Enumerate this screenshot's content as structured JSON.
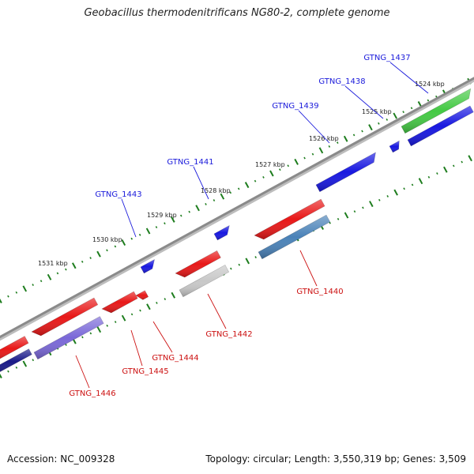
{
  "title": "Geobacillus thermodenitrificans NG80-2, complete genome",
  "footer": {
    "accession": "Accession: NC_009328",
    "summary": "Topology: circular; Length: 3,550,319 bp; Genes: 3,509"
  },
  "colors": {
    "backbone": "#8a8a8a",
    "forward_label": "#1a1adb",
    "reverse_label": "#cc1111",
    "tick": "#1e7d1e"
  },
  "ticks": [
    "1524 kbp",
    "1525 kbp",
    "1526 kbp",
    "1527 kbp",
    "1528 kbp",
    "1529 kbp",
    "1530 kbp",
    "1531 kbp"
  ],
  "genes": [
    {
      "id": "GTNG_1437",
      "strand": "forward",
      "color": "#44c944"
    },
    {
      "id": "GTNG_1438",
      "strand": "forward",
      "color": "#1818e0"
    },
    {
      "id": "GTNG_1439",
      "strand": "forward",
      "color": "#1818e0"
    },
    {
      "id": "GTNG_1440",
      "strand": "reverse",
      "color": "#4a82b8"
    },
    {
      "id": "GTNG_1441",
      "strand": "forward",
      "color": "#1818e0"
    },
    {
      "id": "GTNG_1442",
      "strand": "reverse",
      "color": "#c8c8c8"
    },
    {
      "id": "GTNG_1443",
      "strand": "forward",
      "color": "#1818e0"
    },
    {
      "id": "GTNG_1444",
      "strand": "reverse",
      "color": "#e81818"
    },
    {
      "id": "GTNG_1445",
      "strand": "reverse",
      "color": "#e81818"
    },
    {
      "id": "GTNG_1446",
      "strand": "reverse",
      "color": "#7a68d8"
    }
  ],
  "unlabeled_genes": [
    {
      "name": "outer-green-gene-adjacent",
      "color": "#1818e0"
    },
    {
      "name": "edge-red-gene",
      "color": "#e81818"
    },
    {
      "name": "edge-navy-gene",
      "color": "#1a1a88"
    },
    {
      "name": "red-gene-1",
      "color": "#e81818"
    },
    {
      "name": "red-gene-2",
      "color": "#e81818"
    }
  ]
}
